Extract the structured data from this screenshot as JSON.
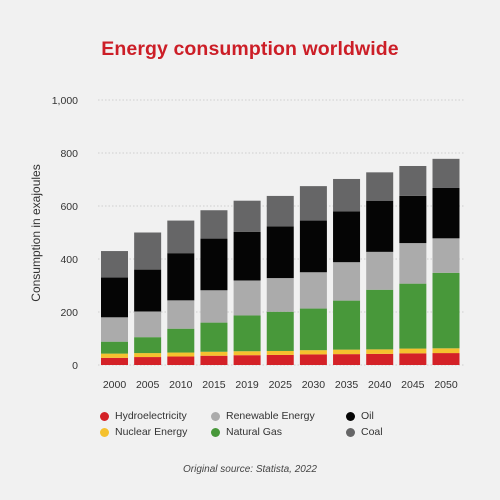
{
  "chart_data": {
    "type": "bar",
    "stacked": true,
    "title": "Energy consumption worldwide",
    "xlabel": "",
    "ylabel": "Consumption in exajoules",
    "ylim": [
      0,
      1000
    ],
    "yticks": [
      0,
      200,
      400,
      600,
      800,
      1000
    ],
    "ytick_labels": [
      "0",
      "200",
      "400",
      "600",
      "800",
      "1,000"
    ],
    "categories": [
      "2000",
      "2005",
      "2010",
      "2015",
      "2019",
      "2025",
      "2030",
      "2035",
      "2040",
      "2045",
      "2050"
    ],
    "series": [
      {
        "name": "Hydroelectricity",
        "color": "#d42127",
        "values": [
          27,
          30,
          32,
          35,
          37,
          38,
          40,
          41,
          42,
          44,
          45
        ]
      },
      {
        "name": "Nuclear Energy",
        "color": "#f5c12e",
        "values": [
          16,
          15,
          15,
          15,
          15,
          15,
          16,
          17,
          17,
          18,
          18
        ]
      },
      {
        "name": "Natural Gas",
        "color": "#48983a",
        "values": [
          45,
          60,
          90,
          110,
          135,
          148,
          157,
          185,
          225,
          245,
          285
        ]
      },
      {
        "name": "Renewable Energy",
        "color": "#ababab",
        "values": [
          92,
          97,
          107,
          122,
          132,
          127,
          137,
          145,
          143,
          153,
          130
        ]
      },
      {
        "name": "Oil",
        "color": "#050505",
        "values": [
          150,
          158,
          178,
          195,
          183,
          195,
          195,
          192,
          193,
          178,
          190
        ]
      },
      {
        "name": "Coal",
        "color": "#666667",
        "values": [
          100,
          140,
          123,
          107,
          118,
          115,
          130,
          122,
          107,
          113,
          110
        ]
      }
    ],
    "grid": true,
    "legend_position": "bottom"
  },
  "legend": {
    "items": [
      {
        "label": "Hydroelectricity",
        "color": "#d42127"
      },
      {
        "label": "Renewable Energy",
        "color": "#ababab"
      },
      {
        "label": "Oil",
        "color": "#050505"
      },
      {
        "label": "Nuclear Energy",
        "color": "#f5c12e"
      },
      {
        "label": "Natural Gas",
        "color": "#48983a"
      },
      {
        "label": "Coal",
        "color": "#666667"
      }
    ]
  },
  "source_note": "Original source: Statista, 2022"
}
